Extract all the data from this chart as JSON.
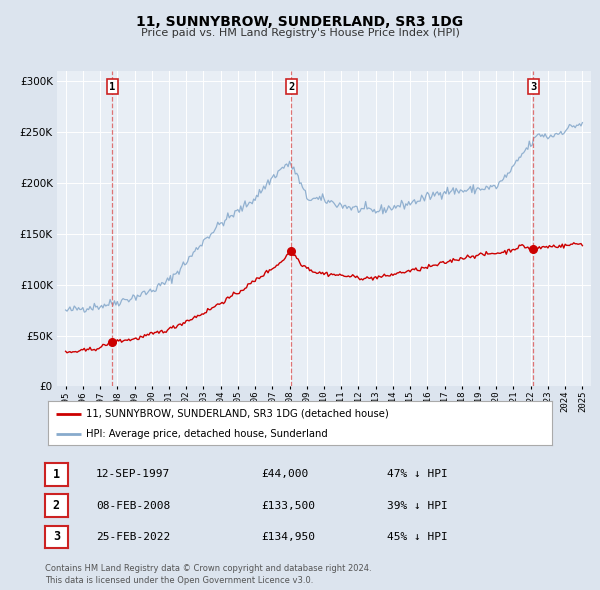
{
  "title": "11, SUNNYBROW, SUNDERLAND, SR3 1DG",
  "subtitle": "Price paid vs. HM Land Registry's House Price Index (HPI)",
  "bg_color": "#dce4ee",
  "plot_bg_color": "#e8eef5",
  "legend_label_red": "11, SUNNYBROW, SUNDERLAND, SR3 1DG (detached house)",
  "legend_label_blue": "HPI: Average price, detached house, Sunderland",
  "footer1": "Contains HM Land Registry data © Crown copyright and database right 2024.",
  "footer2": "This data is licensed under the Open Government Licence v3.0.",
  "sales": [
    {
      "num": 1,
      "date": "12-SEP-1997",
      "price": 44000,
      "pct": "47% ↓ HPI",
      "x": 1997.71
    },
    {
      "num": 2,
      "date": "08-FEB-2008",
      "price": 133500,
      "pct": "39% ↓ HPI",
      "x": 2008.11
    },
    {
      "num": 3,
      "date": "25-FEB-2022",
      "price": 134950,
      "pct": "45% ↓ HPI",
      "x": 2022.15
    }
  ],
  "ylim": [
    0,
    310000
  ],
  "yticks": [
    0,
    50000,
    100000,
    150000,
    200000,
    250000,
    300000
  ],
  "ytick_labels": [
    "£0",
    "£50K",
    "£100K",
    "£150K",
    "£200K",
    "£250K",
    "£300K"
  ],
  "xlim": [
    1994.5,
    2025.5
  ],
  "xtick_years": [
    1995,
    1996,
    1997,
    1998,
    1999,
    2000,
    2001,
    2002,
    2003,
    2004,
    2005,
    2006,
    2007,
    2008,
    2009,
    2010,
    2011,
    2012,
    2013,
    2014,
    2015,
    2016,
    2017,
    2018,
    2019,
    2020,
    2021,
    2022,
    2023,
    2024,
    2025
  ],
  "red_color": "#cc0000",
  "blue_color": "#88aacc",
  "grid_color": "#ffffff",
  "sale_marker_color": "#cc0000",
  "vline_color": "#dd6666"
}
